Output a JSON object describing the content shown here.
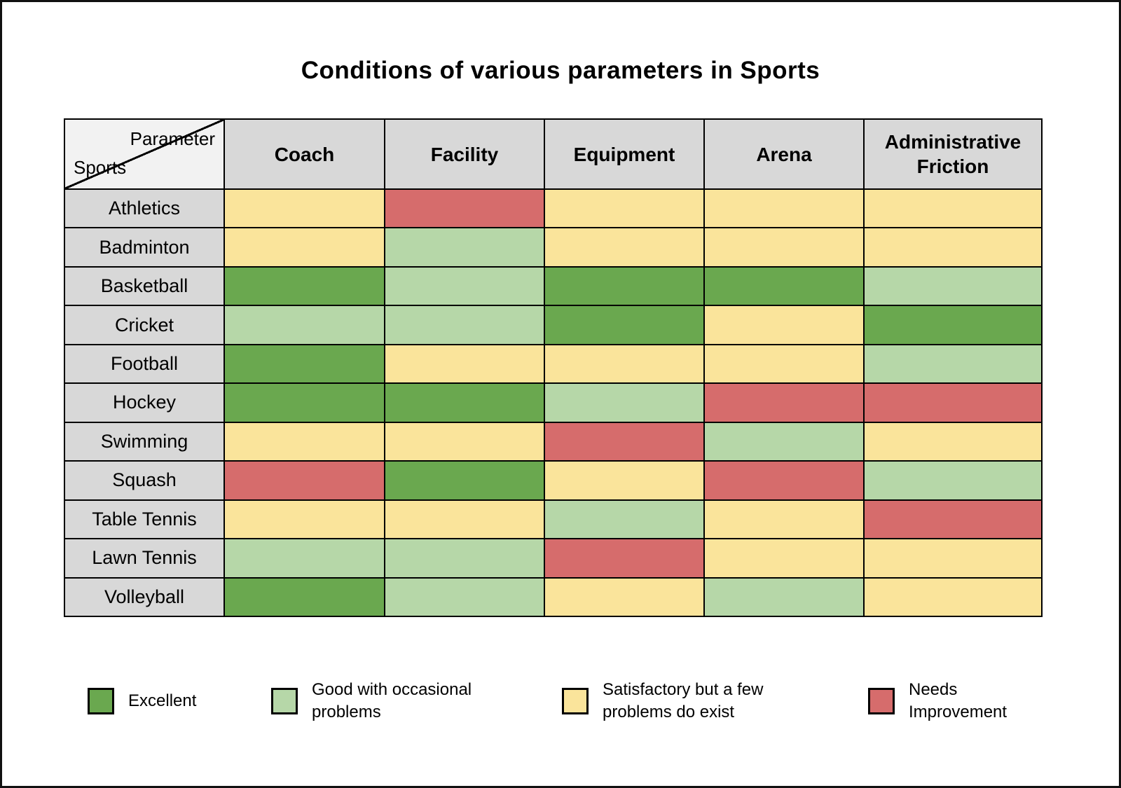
{
  "title": "Conditions of various parameters in Sports",
  "corner": {
    "top_label": "Parameter",
    "bottom_label": "Sports"
  },
  "palette": {
    "excellent": "#6aa84f",
    "good": "#b6d7a8",
    "satisfactory": "#fae49b",
    "needs_improvement": "#d66c6c"
  },
  "chart_data": {
    "type": "heatmap",
    "title": "Conditions of various parameters in Sports",
    "columns": [
      "Coach",
      "Facility",
      "Equipment",
      "Arena",
      "Administrative Friction"
    ],
    "rows": [
      {
        "sport": "Athletics",
        "ratings": [
          "satisfactory",
          "needs_improvement",
          "satisfactory",
          "satisfactory",
          "satisfactory"
        ]
      },
      {
        "sport": "Badminton",
        "ratings": [
          "satisfactory",
          "good",
          "satisfactory",
          "satisfactory",
          "satisfactory"
        ]
      },
      {
        "sport": "Basketball",
        "ratings": [
          "excellent",
          "good",
          "excellent",
          "excellent",
          "good"
        ]
      },
      {
        "sport": "Cricket",
        "ratings": [
          "good",
          "good",
          "excellent",
          "satisfactory",
          "excellent"
        ]
      },
      {
        "sport": "Football",
        "ratings": [
          "excellent",
          "satisfactory",
          "satisfactory",
          "satisfactory",
          "good"
        ]
      },
      {
        "sport": "Hockey",
        "ratings": [
          "excellent",
          "excellent",
          "good",
          "needs_improvement",
          "needs_improvement"
        ]
      },
      {
        "sport": "Swimming",
        "ratings": [
          "satisfactory",
          "satisfactory",
          "needs_improvement",
          "good",
          "satisfactory"
        ]
      },
      {
        "sport": "Squash",
        "ratings": [
          "needs_improvement",
          "excellent",
          "satisfactory",
          "needs_improvement",
          "good"
        ]
      },
      {
        "sport": "Table Tennis",
        "ratings": [
          "satisfactory",
          "satisfactory",
          "good",
          "satisfactory",
          "needs_improvement"
        ]
      },
      {
        "sport": "Lawn Tennis",
        "ratings": [
          "good",
          "good",
          "needs_improvement",
          "satisfactory",
          "satisfactory"
        ]
      },
      {
        "sport": "Volleyball",
        "ratings": [
          "excellent",
          "good",
          "satisfactory",
          "good",
          "satisfactory"
        ]
      }
    ],
    "legend": [
      {
        "key": "excellent",
        "label": "Excellent"
      },
      {
        "key": "good",
        "label": "Good with occasional\nproblems"
      },
      {
        "key": "satisfactory",
        "label": "Satisfactory but a few\nproblems do exist"
      },
      {
        "key": "needs_improvement",
        "label": "Needs\nImprovement"
      }
    ],
    "legend_position": "bottom"
  }
}
